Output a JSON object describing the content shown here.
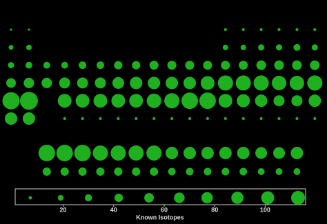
{
  "chart_data": {
    "type": "bubble",
    "color": "#1fb01f",
    "rows": [
      [
        3,
        3,
        null,
        null,
        null,
        null,
        null,
        null,
        null,
        null,
        null,
        null,
        5,
        5,
        5,
        5,
        5,
        5
      ],
      [
        14,
        18,
        null,
        null,
        null,
        null,
        null,
        null,
        null,
        null,
        null,
        null,
        18,
        18,
        23,
        23,
        28,
        23
      ],
      [
        23,
        28,
        28,
        28,
        34,
        34,
        41,
        41,
        48,
        48,
        48,
        48,
        48,
        48,
        55,
        55,
        55,
        55
      ],
      [
        55,
        64,
        64,
        72,
        72,
        72,
        82,
        92,
        92,
        92,
        92,
        113,
        137,
        137,
        137,
        125,
        125,
        137
      ],
      [
        177,
        191,
        null,
        113,
        113,
        113,
        113,
        113,
        125,
        137,
        163,
        163,
        113,
        102,
        92,
        72,
        72,
        92
      ],
      [
        92,
        92,
        null,
        5,
        5,
        5,
        5,
        5,
        5,
        5,
        5,
        5,
        5,
        5,
        5,
        5,
        5,
        5
      ]
    ],
    "block_rows": [
      [
        163,
        163,
        163,
        137,
        137,
        137,
        137,
        92,
        92,
        92,
        92,
        92,
        82,
        82,
        92
      ],
      [
        41,
        41,
        41,
        41,
        41,
        41,
        41,
        34,
        34,
        34,
        34,
        34,
        28,
        28,
        28
      ]
    ],
    "legend": {
      "title": "Known Isotopes",
      "xlim": [
        1,
        116
      ],
      "xticks": [
        20,
        40,
        60,
        80,
        100
      ],
      "sizes": [
        7,
        19,
        30,
        42,
        54,
        66,
        77,
        89,
        101,
        113
      ]
    }
  }
}
